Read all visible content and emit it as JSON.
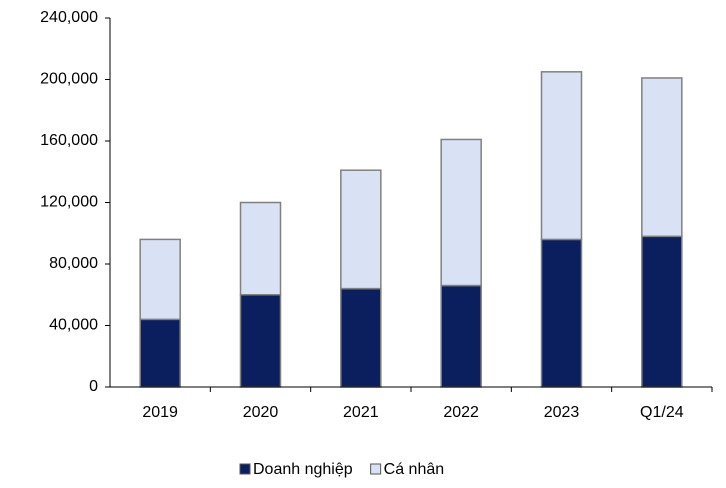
{
  "chart_data": {
    "type": "stacked_bar",
    "categories": [
      "2019",
      "2020",
      "2021",
      "2022",
      "2023",
      "Q1/24"
    ],
    "series": [
      {
        "name": "Doanh nghiệp",
        "color": "#0b1f5e",
        "values": [
          44000,
          60000,
          64000,
          66000,
          96000,
          98000
        ]
      },
      {
        "name": "Cá nhân",
        "color": "#d9e1f4",
        "values": [
          52000,
          60000,
          77000,
          95000,
          109000,
          103000
        ]
      }
    ],
    "ylim": [
      0,
      240000
    ],
    "yticks": [
      0,
      {
        "value": 40000,
        "label": "40,000"
      },
      {
        "value": 80000,
        "label": "80,000"
      },
      {
        "value": 120000,
        "label": "120,000"
      },
      {
        "value": 160000,
        "label": "160,000"
      },
      {
        "value": 200000,
        "label": "200,000"
      },
      {
        "value": 240000,
        "label": "240,000"
      }
    ],
    "legend": "bottom"
  }
}
